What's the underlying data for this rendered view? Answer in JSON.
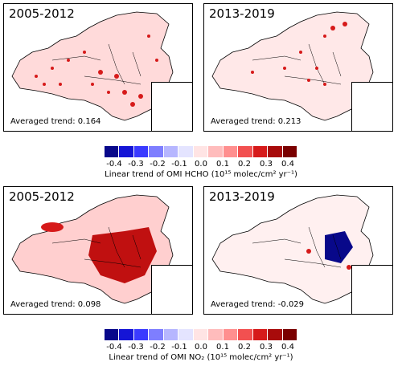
{
  "panels": [
    {
      "title": "2005-2012",
      "trend": "Averaged trend: 0.164"
    },
    {
      "title": "2013-2019",
      "trend": "Averaged trend: 0.213"
    },
    {
      "title": "2005-2012",
      "trend": "Averaged trend: 0.098"
    },
    {
      "title": "2013-2019",
      "trend": "Averaged trend: -0.029"
    }
  ],
  "colorbar": {
    "ticks": [
      "-0.4",
      "-0.3",
      "-0.2",
      "-0.1",
      "0.0",
      "0.1",
      "0.2",
      "0.3",
      "0.4"
    ],
    "colors": [
      "#08088a",
      "#1515d6",
      "#3a3aff",
      "#7e7eff",
      "#b6b6ff",
      "#e4e4ff",
      "#ffe4e4",
      "#ffbcbc",
      "#ff8f8f",
      "#f25050",
      "#d61a1a",
      "#a80b0b",
      "#7a0000"
    ],
    "label_hcho": "Linear trend of OMI HCHO (10¹⁵ molec/cm² yr⁻¹)",
    "label_no2": "Linear trend of OMI NO₂ (10¹⁵ molec/cm² yr⁻¹)"
  }
}
